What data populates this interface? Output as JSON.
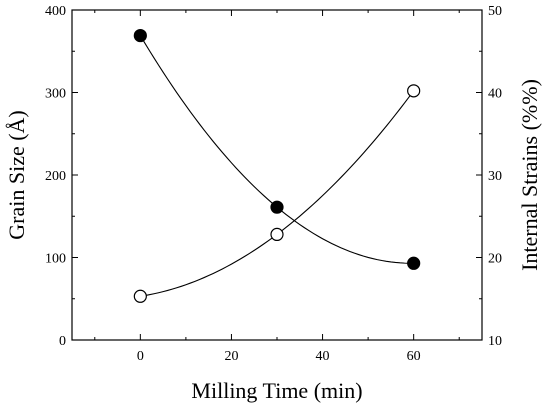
{
  "chart_data": {
    "type": "scatter",
    "title": "",
    "xlabel": "Milling Time (min)",
    "ylabel": "Grain Size (Å)",
    "y2label": "Internal Strains (%%)",
    "xlim": [
      -15,
      75
    ],
    "ylim": [
      0,
      400
    ],
    "y2lim": [
      10,
      50
    ],
    "xticks": [
      0,
      20,
      40,
      60
    ],
    "yticks": [
      0,
      100,
      200,
      300,
      400
    ],
    "y2ticks": [
      10,
      20,
      30,
      40,
      50
    ],
    "grid": false,
    "legend": "none",
    "series": [
      {
        "axis": "left",
        "marker": "filled-circle",
        "x": [
          0,
          30,
          60
        ],
        "values": [
          369,
          161,
          93
        ]
      },
      {
        "axis": "right",
        "marker": "open-circle",
        "x": [
          0,
          30,
          60
        ],
        "values": [
          15.3,
          22.8,
          40.2
        ]
      }
    ]
  }
}
